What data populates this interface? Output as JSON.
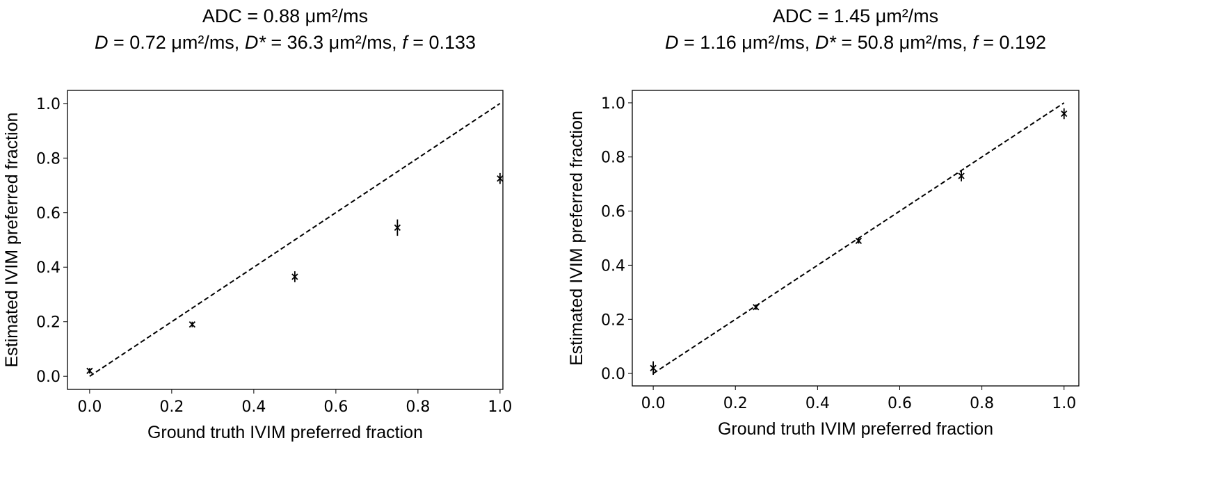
{
  "chart_data": [
    {
      "type": "scatter",
      "title_lines": [
        [
          {
            "text": "ADC = 0.88 μm²/ms",
            "italic": false
          }
        ],
        [
          {
            "text": "D",
            "italic": true
          },
          {
            "text": " = 0.72 μm²/ms, ",
            "italic": false
          },
          {
            "text": "D*",
            "italic": true
          },
          {
            "text": " = 36.3 μm²/ms, ",
            "italic": false
          },
          {
            "text": "f",
            "italic": true
          },
          {
            "text": " = 0.133",
            "italic": false
          }
        ]
      ],
      "xlabel": "Ground truth IVIM preferred fraction",
      "ylabel": "Estimated IVIM preferred fraction",
      "xlim": [
        -0.054,
        1.007
      ],
      "ylim": [
        -0.048,
        1.048
      ],
      "xticks": [
        "0.0",
        "0.2",
        "0.4",
        "0.6",
        "0.8",
        "1.0"
      ],
      "yticks": [
        "0.0",
        "0.2",
        "0.4",
        "0.6",
        "0.8",
        "1.0"
      ],
      "x": [
        0.0,
        0.25,
        0.5,
        0.75,
        1.0
      ],
      "y": [
        0.02,
        0.19,
        0.365,
        0.545,
        0.725
      ],
      "yerr": [
        0.01,
        0.01,
        0.02,
        0.03,
        0.02
      ],
      "marker": "x",
      "identity_line": {
        "x": [
          0,
          1
        ],
        "y": [
          0,
          1
        ],
        "style": "dashed"
      },
      "grid": false
    },
    {
      "type": "scatter",
      "title_lines": [
        [
          {
            "text": "ADC = 1.45 μm²/ms",
            "italic": false
          }
        ],
        [
          {
            "text": "D",
            "italic": true
          },
          {
            "text": " = 1.16 μm²/ms, ",
            "italic": false
          },
          {
            "text": "D*",
            "italic": true
          },
          {
            "text": " = 50.8 μm²/ms, ",
            "italic": false
          },
          {
            "text": "f",
            "italic": true
          },
          {
            "text": " = 0.192",
            "italic": false
          }
        ]
      ],
      "xlabel": "Ground truth IVIM preferred fraction",
      "ylabel": "Estimated IVIM preferred fraction",
      "xlim": [
        -0.051,
        1.036
      ],
      "ylim": [
        -0.046,
        1.046
      ],
      "xticks": [
        "0.0",
        "0.2",
        "0.4",
        "0.6",
        "0.8",
        "1.0"
      ],
      "yticks": [
        "0.0",
        "0.2",
        "0.4",
        "0.6",
        "0.8",
        "1.0"
      ],
      "x": [
        0.0,
        0.25,
        0.5,
        0.75,
        1.0
      ],
      "y": [
        0.02,
        0.245,
        0.49,
        0.73,
        0.96
      ],
      "yerr": [
        0.025,
        0.01,
        0.01,
        0.02,
        0.02
      ],
      "marker": "x",
      "identity_line": {
        "x": [
          0,
          1
        ],
        "y": [
          0,
          1
        ],
        "style": "dashed"
      },
      "grid": false
    }
  ]
}
